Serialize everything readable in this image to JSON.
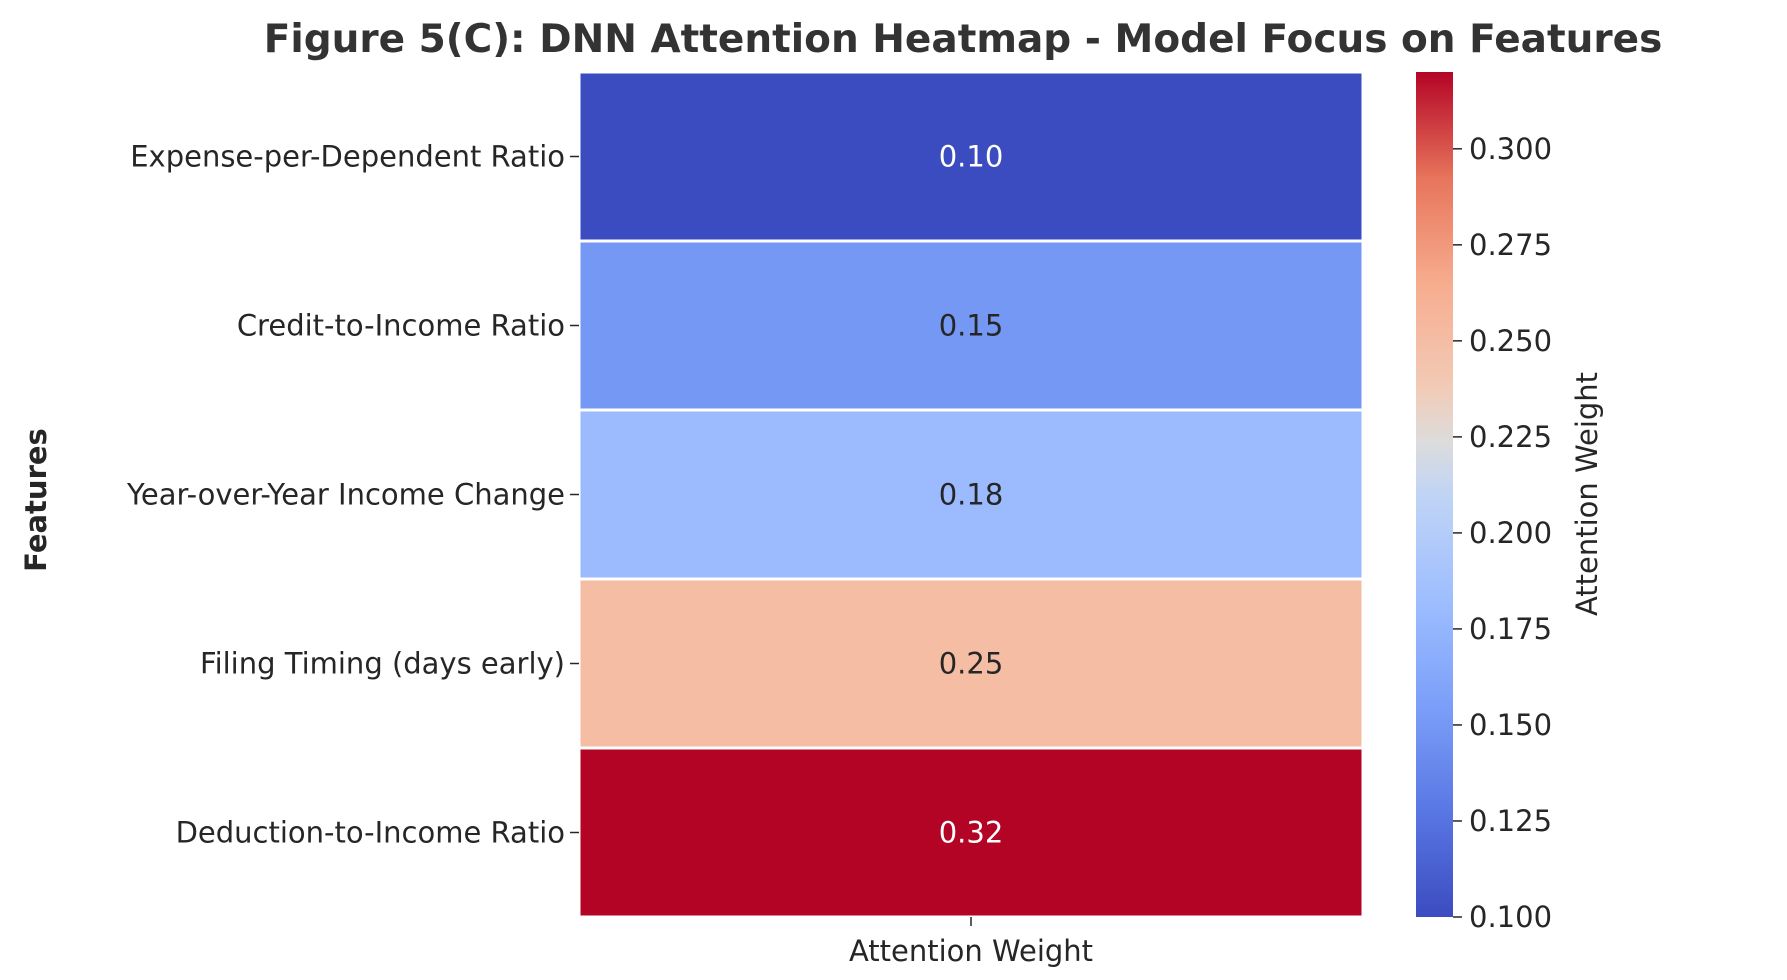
{
  "chart_data": {
    "type": "heatmap",
    "title": "Figure 5(C): DNN Attention Heatmap - Model Focus on Features",
    "xlabel": "",
    "ylabel": "Features",
    "columns": [
      "Attention Weight"
    ],
    "rows": [
      "Expense-per-Dependent Ratio",
      "Credit-to-Income Ratio",
      "Year-over-Year Income Change",
      "Filing Timing (days early)",
      "Deduction-to-Income Ratio"
    ],
    "values": [
      0.1,
      0.15,
      0.18,
      0.25,
      0.32
    ],
    "value_labels": [
      "0.10",
      "0.15",
      "0.18",
      "0.25",
      "0.32"
    ],
    "colormap": "coolwarm",
    "colorbar": {
      "label": "Attention Weight",
      "range": [
        0.1,
        0.32
      ],
      "ticks": [
        0.1,
        0.125,
        0.15,
        0.175,
        0.2,
        0.225,
        0.25,
        0.275,
        0.3
      ],
      "tick_labels": [
        "0.100",
        "0.125",
        "0.150",
        "0.175",
        "0.200",
        "0.225",
        "0.250",
        "0.275",
        "0.300"
      ]
    },
    "colors": {
      "low": "#3b4cc0",
      "mid": "#dddddd",
      "high": "#b40426",
      "cell_border": "#ffffff",
      "text_dark": "#262626",
      "text_light": "#ffffff"
    }
  }
}
